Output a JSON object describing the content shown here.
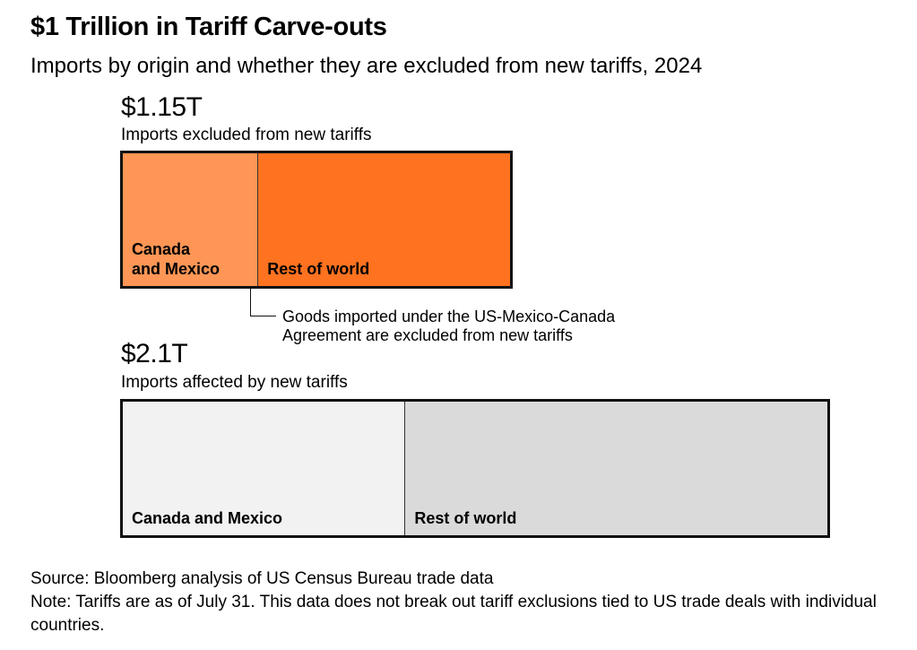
{
  "title": "$1 Trillion in Tariff Carve-outs",
  "subtitle": "Imports by origin and whether they are excluded from new tariffs, 2024",
  "chart_data": {
    "type": "bar",
    "orientation": "horizontal-stacked",
    "categories": [
      "Canada and Mexico",
      "Rest of world"
    ],
    "bars": [
      {
        "total_label": "$1.15T",
        "total": 1.15,
        "description": "Imports excluded from new tariffs",
        "segments": [
          {
            "name": "Canada\nand Mexico",
            "value": 0.4,
            "color": "#FF9655"
          },
          {
            "name": "Rest of world",
            "value": 0.75,
            "color": "#FF7220"
          }
        ]
      },
      {
        "total_label": "$2.1T",
        "total": 2.1,
        "description": "Imports affected by new tariffs",
        "segments": [
          {
            "name": "Canada and Mexico",
            "value": 0.84,
            "color": "#F2F2F2"
          },
          {
            "name": "Rest of world",
            "value": 1.26,
            "color": "#DADADA"
          }
        ]
      }
    ],
    "annotation": "Goods imported under the US-Mexico-Canada\nAgreement are excluded from new tariffs"
  },
  "footer": {
    "source": "Source: Bloomberg analysis of US Census Bureau trade data",
    "note": "Note: Tariffs are as of July 31. This data does not break out tariff exclusions tied to US trade deals with individual countries."
  }
}
